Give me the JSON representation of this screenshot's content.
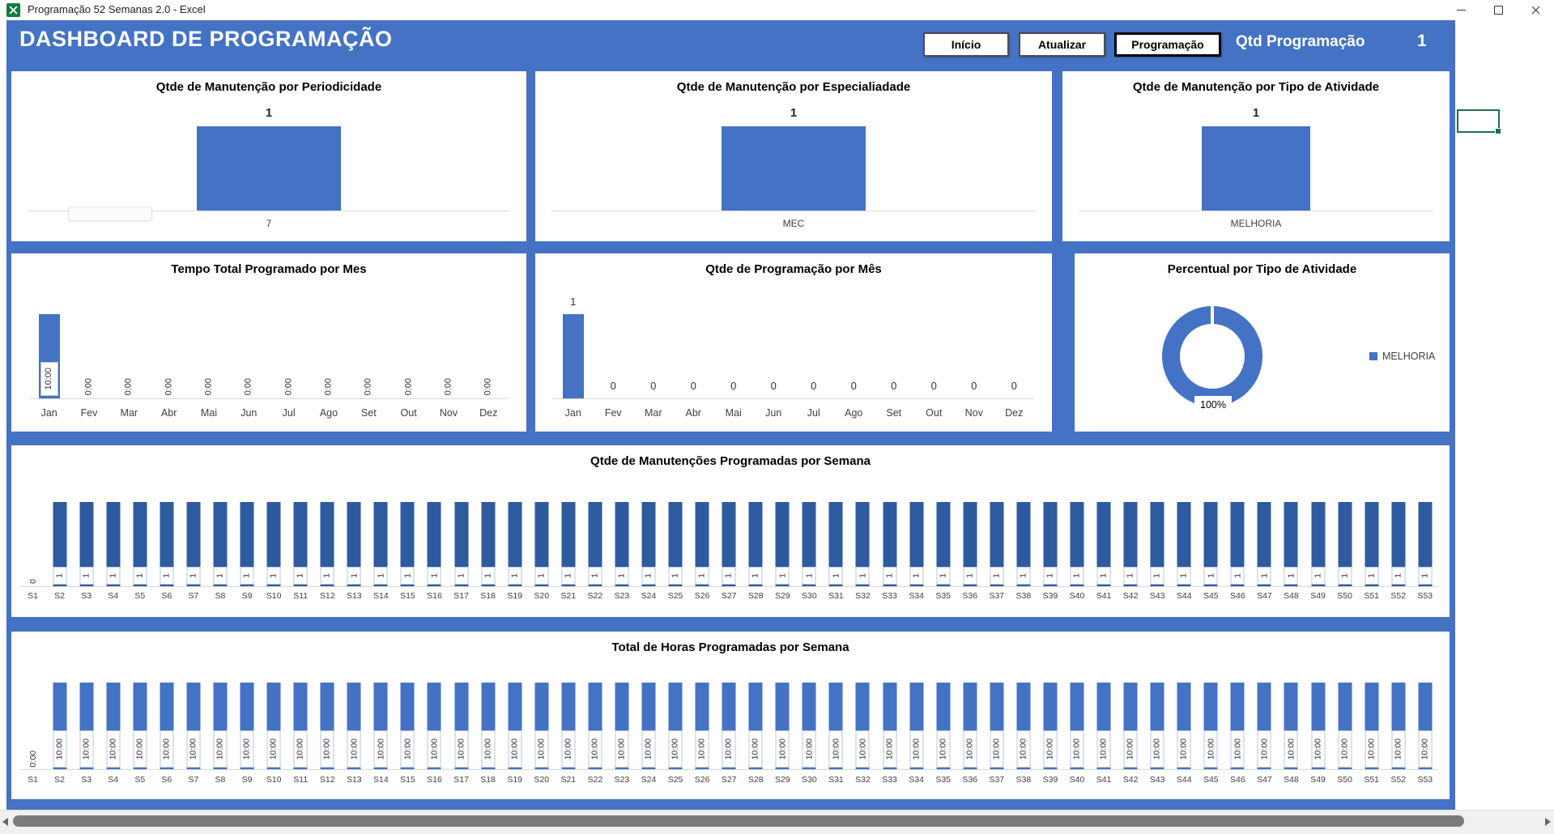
{
  "titlebar": {
    "title": "Programação 52 Semanas 2.0 - Excel"
  },
  "header": {
    "title": "DASHBOARD DE PROGRAMAÇÃO",
    "buttons": [
      {
        "label": "Início"
      },
      {
        "label": "Atualizar"
      },
      {
        "label": "Programação"
      }
    ],
    "qty_label": "Qtd Programação",
    "qty_value": "1"
  },
  "colors": {
    "accent_blue": "#4472C4",
    "dark_bar_blue": "#2E5B9F",
    "excel_green": "#107C41",
    "selection_green": "#1E7145"
  },
  "chart_data": [
    {
      "type": "bar",
      "title": "Qtde de Manutenção por Periodicidade",
      "categories": [
        "7"
      ],
      "values": [
        1
      ],
      "data_labels": [
        "1"
      ],
      "grid": false
    },
    {
      "type": "bar",
      "title": "Qtde de Manutenção por Especialiadade",
      "categories": [
        "MEC"
      ],
      "values": [
        1
      ],
      "data_labels": [
        "1"
      ],
      "grid": false
    },
    {
      "type": "bar",
      "title": "Qtde de Manutenção por Tipo de Atividade",
      "categories": [
        "MELHORIA"
      ],
      "values": [
        1
      ],
      "data_labels": [
        "1"
      ],
      "grid": false
    },
    {
      "type": "bar",
      "title": "Tempo Total Programado por Mes",
      "categories": [
        "Jan",
        "Fev",
        "Mar",
        "Abr",
        "Mai",
        "Jun",
        "Jul",
        "Ago",
        "Set",
        "Out",
        "Nov",
        "Dez"
      ],
      "values_hours": [
        10,
        0,
        0,
        0,
        0,
        0,
        0,
        0,
        0,
        0,
        0,
        0
      ],
      "label_map": {
        "0": "0:00",
        "10": "10:00"
      },
      "ylim_hours": [
        0,
        10
      ],
      "grid": false
    },
    {
      "type": "bar",
      "title": "Qtde de Programação por Mês",
      "categories": [
        "Jan",
        "Fev",
        "Mar",
        "Abr",
        "Mai",
        "Jun",
        "Jul",
        "Ago",
        "Set",
        "Out",
        "Nov",
        "Dez"
      ],
      "values": [
        1,
        0,
        0,
        0,
        0,
        0,
        0,
        0,
        0,
        0,
        0,
        0
      ],
      "ylim": [
        0,
        1
      ],
      "grid": false
    },
    {
      "type": "donut",
      "title": "Percentual por Tipo de Atividade",
      "categories": [
        "MELHORIA"
      ],
      "values": [
        100
      ],
      "center_label": "100%",
      "legend_position": "right",
      "legend_entries": [
        "MELHORIA"
      ]
    },
    {
      "type": "bar",
      "title": "Qtde de Manutenções Programadas por Semana",
      "categories": [
        "S1",
        "S2",
        "S3",
        "S4",
        "S5",
        "S6",
        "S7",
        "S8",
        "S9",
        "S10",
        "S11",
        "S12",
        "S13",
        "S14",
        "S15",
        "S16",
        "S17",
        "S18",
        "S19",
        "S20",
        "S21",
        "S22",
        "S23",
        "S24",
        "S25",
        "S26",
        "S27",
        "S28",
        "S29",
        "S30",
        "S31",
        "S32",
        "S33",
        "S34",
        "S35",
        "S36",
        "S37",
        "S38",
        "S39",
        "S40",
        "S41",
        "S42",
        "S43",
        "S44",
        "S45",
        "S46",
        "S47",
        "S48",
        "S49",
        "S50",
        "S51",
        "S52",
        "S53"
      ],
      "values": [
        0,
        1,
        1,
        1,
        1,
        1,
        1,
        1,
        1,
        1,
        1,
        1,
        1,
        1,
        1,
        1,
        1,
        1,
        1,
        1,
        1,
        1,
        1,
        1,
        1,
        1,
        1,
        1,
        1,
        1,
        1,
        1,
        1,
        1,
        1,
        1,
        1,
        1,
        1,
        1,
        1,
        1,
        1,
        1,
        1,
        1,
        1,
        1,
        1,
        1,
        1,
        1,
        1
      ],
      "ylim": [
        0,
        1
      ],
      "grid": false
    },
    {
      "type": "bar",
      "title": "Total de Horas Programadas por Semana",
      "categories": [
        "S1",
        "S2",
        "S3",
        "S4",
        "S5",
        "S6",
        "S7",
        "S8",
        "S9",
        "S10",
        "S11",
        "S12",
        "S13",
        "S14",
        "S15",
        "S16",
        "S17",
        "S18",
        "S19",
        "S20",
        "S21",
        "S22",
        "S23",
        "S24",
        "S25",
        "S26",
        "S27",
        "S28",
        "S29",
        "S30",
        "S31",
        "S32",
        "S33",
        "S34",
        "S35",
        "S36",
        "S37",
        "S38",
        "S39",
        "S40",
        "S41",
        "S42",
        "S43",
        "S44",
        "S45",
        "S46",
        "S47",
        "S48",
        "S49",
        "S50",
        "S51",
        "S52",
        "S53"
      ],
      "values_hours": [
        0,
        10,
        10,
        10,
        10,
        10,
        10,
        10,
        10,
        10,
        10,
        10,
        10,
        10,
        10,
        10,
        10,
        10,
        10,
        10,
        10,
        10,
        10,
        10,
        10,
        10,
        10,
        10,
        10,
        10,
        10,
        10,
        10,
        10,
        10,
        10,
        10,
        10,
        10,
        10,
        10,
        10,
        10,
        10,
        10,
        10,
        10,
        10,
        10,
        10,
        10,
        10,
        10
      ],
      "label_map": {
        "0": "0:00",
        "10": "10:00"
      },
      "ylim_hours": [
        0,
        10
      ],
      "grid": false
    }
  ]
}
